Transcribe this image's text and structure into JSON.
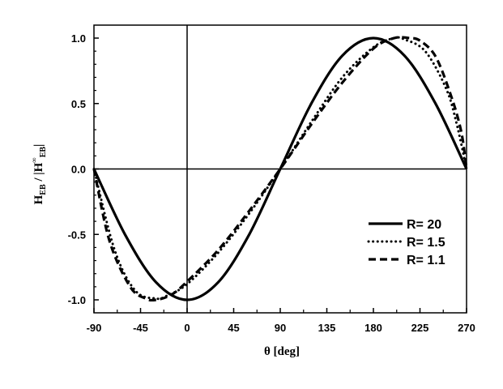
{
  "chart_data": {
    "type": "line",
    "title": "",
    "xlabel": "θ  [deg]",
    "ylabel": "H_EB / |H^∞_EB|",
    "ylabel_parts": {
      "H1": "H",
      "sub1": "EB",
      "sep": " / |",
      "H2": "H",
      "sup": "∞",
      "sub2": "EB",
      "close": "|"
    },
    "xlim": [
      -90,
      270
    ],
    "ylim": [
      -1.0,
      1.0
    ],
    "xticks": [
      -90,
      -45,
      0,
      45,
      90,
      135,
      180,
      225,
      270
    ],
    "xtick_labels": [
      "-90",
      "-45",
      "0",
      "45",
      "90",
      "135",
      "180",
      "225",
      "270"
    ],
    "yticks": [
      -1.0,
      -0.5,
      0.0,
      0.5,
      1.0
    ],
    "ytick_labels": [
      "-1.0",
      "-0.5",
      "0.0",
      "0.5",
      "1.0"
    ],
    "reference_lines": {
      "y": 0,
      "x": 0
    },
    "legend_position": "center-right",
    "series": [
      {
        "name": "R= 20",
        "style": "solid",
        "x": [
          -90,
          -60,
          -30,
          0,
          30,
          60,
          90,
          120,
          150,
          180,
          210,
          240,
          270
        ],
        "y": [
          0,
          -0.5,
          -0.866,
          -1.0,
          -0.866,
          -0.5,
          0,
          0.5,
          0.866,
          1.0,
          0.866,
          0.5,
          0
        ]
      },
      {
        "name": "R= 1.5",
        "style": "dotted",
        "x": [
          -90,
          -70,
          -50,
          -30,
          -20,
          0,
          30,
          60,
          90,
          120,
          150,
          180,
          200,
          210,
          230,
          250,
          260,
          270
        ],
        "y": [
          0,
          -0.62,
          -0.93,
          -0.99,
          -0.97,
          -0.88,
          -0.64,
          -0.34,
          0,
          0.36,
          0.7,
          0.93,
          1.0,
          0.99,
          0.9,
          0.62,
          0.36,
          0
        ]
      },
      {
        "name": "R= 1.1",
        "style": "dashed",
        "x": [
          -90,
          -75,
          -55,
          -40,
          -30,
          -15,
          0,
          30,
          60,
          90,
          120,
          150,
          180,
          200,
          215,
          225,
          240,
          255,
          265,
          270
        ],
        "y": [
          0,
          -0.55,
          -0.9,
          -0.99,
          -1.0,
          -0.96,
          -0.86,
          -0.62,
          -0.32,
          0,
          0.34,
          0.66,
          0.92,
          1.0,
          1.0,
          0.98,
          0.86,
          0.56,
          0.28,
          0
        ]
      }
    ]
  }
}
